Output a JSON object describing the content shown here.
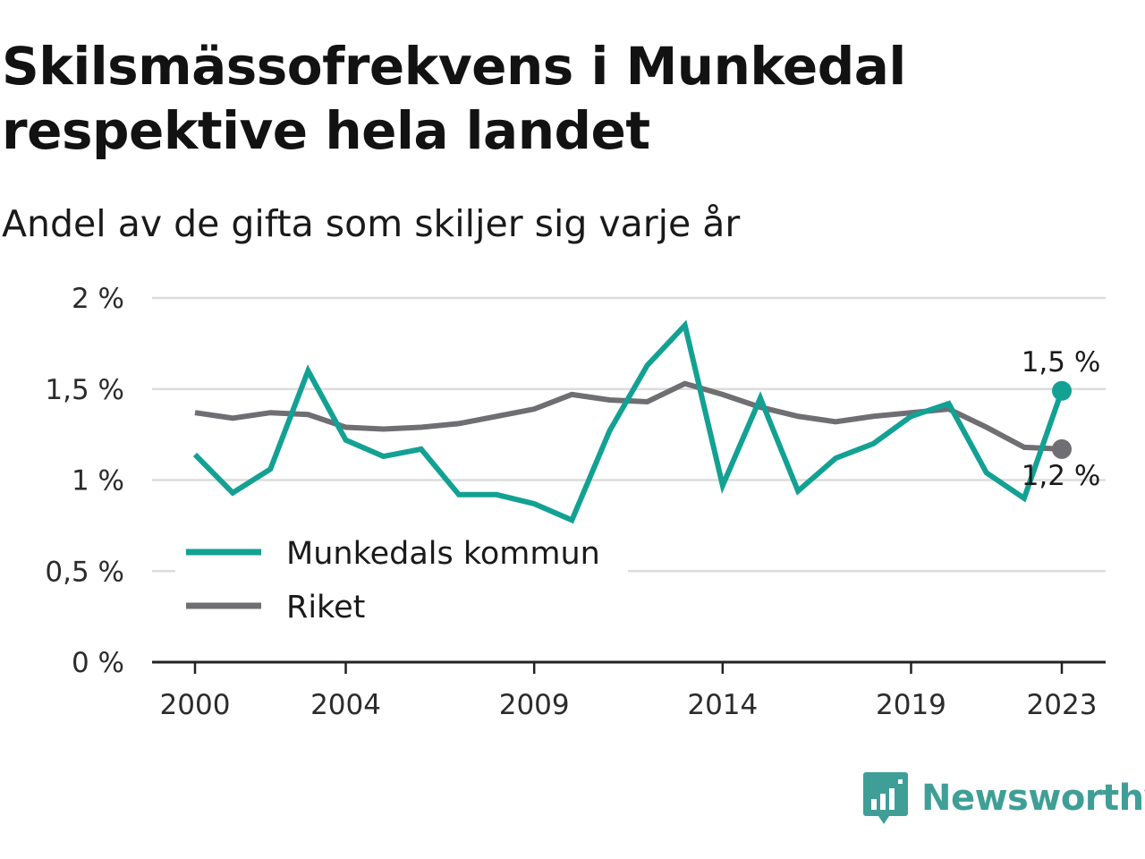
{
  "title": "Skilsmässofrekvens i Munkedal respektive hela landet",
  "subtitle": "Andel av de gifta som skiljer sig varje år",
  "brand": {
    "name": "Newsworthy",
    "color": "#3f9f97"
  },
  "colors": {
    "munkedal": "#12a193",
    "riket": "#6f6e73",
    "grid": "#dcdcdc",
    "axis": "#222222"
  },
  "chart_data": {
    "type": "line",
    "title": "Skilsmässofrekvens i Munkedal respektive hela landet",
    "subtitle": "Andel av de gifta som skiljer sig varje år",
    "x": [
      2000,
      2001,
      2002,
      2003,
      2004,
      2005,
      2006,
      2007,
      2008,
      2009,
      2010,
      2011,
      2012,
      2013,
      2014,
      2015,
      2016,
      2017,
      2018,
      2019,
      2020,
      2021,
      2022,
      2023
    ],
    "x_ticks": [
      2000,
      2004,
      2009,
      2014,
      2019,
      2023
    ],
    "x_tick_labels": [
      "2000",
      "2004",
      "2009",
      "2014",
      "2019",
      "2023"
    ],
    "y_ticks": [
      0,
      0.5,
      1,
      1.5,
      2
    ],
    "y_tick_labels": [
      "0 %",
      "0,5 %",
      "1 %",
      "1,5 %",
      "2 %"
    ],
    "ylim": [
      0,
      2
    ],
    "xlim": [
      2000,
      2023
    ],
    "grid": true,
    "legend_position": "bottom-left",
    "series": [
      {
        "name": "Munkedals kommun",
        "color": "#12a193",
        "values": [
          1.14,
          0.93,
          1.06,
          1.6,
          1.22,
          1.13,
          1.17,
          0.92,
          0.92,
          0.87,
          0.78,
          1.27,
          1.63,
          1.85,
          0.97,
          1.45,
          0.94,
          1.12,
          1.2,
          1.35,
          1.42,
          1.04,
          0.9,
          1.49
        ],
        "end_label": "1,5 %"
      },
      {
        "name": "Riket",
        "color": "#6f6e73",
        "values": [
          1.37,
          1.34,
          1.37,
          1.36,
          1.29,
          1.28,
          1.29,
          1.31,
          1.35,
          1.39,
          1.47,
          1.44,
          1.43,
          1.53,
          1.47,
          1.4,
          1.35,
          1.32,
          1.35,
          1.37,
          1.39,
          1.29,
          1.18,
          1.17
        ],
        "end_label": "1,2 %"
      }
    ]
  }
}
